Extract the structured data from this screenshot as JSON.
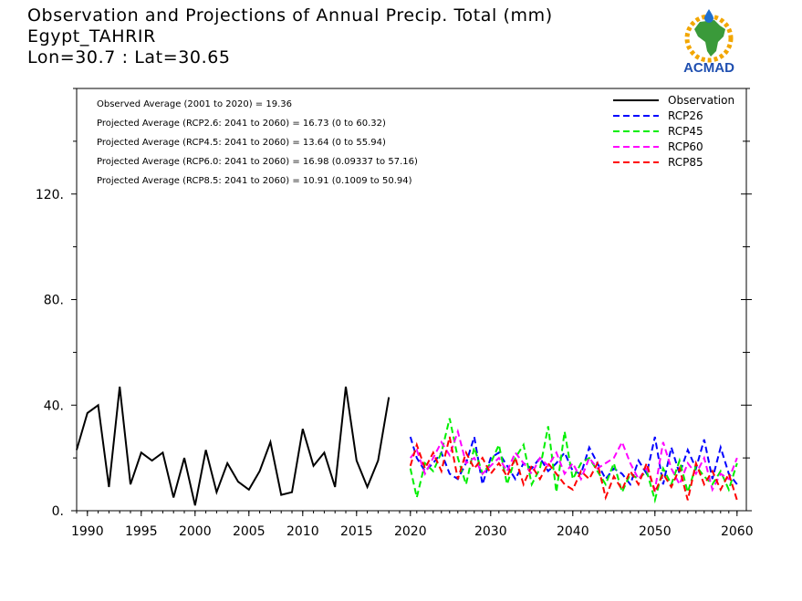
{
  "header": {
    "line1": "Observation and Projections of Annual Precip. Total (mm)",
    "line2": "Egypt_TAHRIR",
    "line3": "Lon=30.7 : Lat=30.65"
  },
  "logo": {
    "text": "ACMAD",
    "icon": "africa-map-logo-icon"
  },
  "stats": [
    "Observed Average (2001 to 2020) = 19.36",
    "Projected Average (RCP2.6: 2041 to 2060) = 16.73 (0 to 60.32)",
    "Projected Average (RCP4.5: 2041 to 2060) = 13.64 (0 to 55.94)",
    "Projected Average (RCP6.0: 2041 to 2060) = 16.98 (0.09337 to 57.16)",
    "Projected Average (RCP8.5: 2041 to 2060) = 10.91 (0.1009 to 50.94)"
  ],
  "chart_data": {
    "type": "line",
    "xlim": [
      1989,
      2060
    ],
    "ylim": [
      0,
      160
    ],
    "x_ticks": [
      1990,
      1995,
      2000,
      2005,
      2010,
      2015,
      2020,
      2030,
      2040,
      2050,
      2060
    ],
    "x_tick_labels": [
      "1990",
      "1995",
      "2000",
      "2005",
      "2010",
      "2015",
      "2020",
      "2030",
      "2040",
      "2050",
      "2060"
    ],
    "y_ticks": [
      0,
      40,
      80,
      120
    ],
    "y_tick_labels": [
      "0.",
      "40.",
      "80.",
      "120."
    ],
    "y_minor_ticks": [
      20,
      60,
      100,
      140,
      160
    ],
    "legend_position": "top-right",
    "series": [
      {
        "name": "Observation",
        "color": "#000000",
        "dash": "solid",
        "x": [
          1989,
          1990,
          1991,
          1992,
          1993,
          1994,
          1995,
          1996,
          1997,
          1998,
          1999,
          2000,
          2001,
          2002,
          2003,
          2004,
          2005,
          2006,
          2007,
          2008,
          2009,
          2010,
          2011,
          2012,
          2013,
          2014,
          2015,
          2016,
          2017,
          2018,
          2019
        ],
        "values": [
          23,
          37,
          40,
          9,
          47,
          10,
          22,
          19,
          22,
          5,
          20,
          2,
          23,
          7,
          18,
          11,
          8,
          15,
          26,
          6,
          7,
          31,
          17,
          22,
          9,
          47,
          19,
          9,
          19,
          43,
          null
        ]
      },
      {
        "name": "RCP26",
        "color": "#0000ff",
        "dash": "dashed",
        "x": [
          2020,
          2021,
          2022,
          2023,
          2024,
          2025,
          2026,
          2027,
          2028,
          2029,
          2030,
          2031,
          2032,
          2033,
          2034,
          2035,
          2036,
          2037,
          2038,
          2039,
          2040,
          2041,
          2042,
          2043,
          2044,
          2045,
          2046,
          2047,
          2048,
          2049,
          2050,
          2051,
          2052,
          2053,
          2054,
          2055,
          2056,
          2057,
          2058,
          2059,
          2060
        ],
        "values": [
          28,
          20,
          15,
          18,
          22,
          14,
          12,
          18,
          28,
          10,
          20,
          22,
          17,
          12,
          18,
          16,
          20,
          15,
          18,
          22,
          15,
          14,
          24,
          18,
          12,
          16,
          14,
          10,
          19,
          14,
          28,
          10,
          24,
          14,
          23,
          16,
          27,
          12,
          24,
          14,
          10
        ]
      },
      {
        "name": "RCP45",
        "color": "#00ee00",
        "dash": "dashed",
        "x": [
          2020,
          2021,
          2022,
          2023,
          2024,
          2025,
          2026,
          2027,
          2028,
          2029,
          2030,
          2031,
          2032,
          2033,
          2034,
          2035,
          2036,
          2037,
          2038,
          2039,
          2040,
          2041,
          2042,
          2043,
          2044,
          2045,
          2046,
          2047,
          2048,
          2049,
          2050,
          2051,
          2052,
          2053,
          2054,
          2055,
          2056,
          2057,
          2058,
          2059,
          2060
        ],
        "values": [
          16,
          5,
          18,
          15,
          22,
          35,
          20,
          10,
          24,
          14,
          18,
          25,
          10,
          20,
          25,
          10,
          16,
          32,
          7,
          30,
          12,
          18,
          20,
          15,
          10,
          18,
          7,
          14,
          12,
          15,
          4,
          16,
          10,
          19,
          7,
          17,
          13,
          10,
          15,
          8,
          18
        ]
      },
      {
        "name": "RCP60",
        "color": "#ff00ff",
        "dash": "dashed",
        "x": [
          2020,
          2021,
          2022,
          2023,
          2024,
          2025,
          2026,
          2027,
          2028,
          2029,
          2030,
          2031,
          2032,
          2033,
          2034,
          2035,
          2036,
          2037,
          2038,
          2039,
          2040,
          2041,
          2042,
          2043,
          2044,
          2045,
          2046,
          2047,
          2048,
          2049,
          2050,
          2051,
          2052,
          2053,
          2054,
          2055,
          2056,
          2057,
          2058,
          2059,
          2060
        ],
        "values": [
          20,
          23,
          14,
          20,
          26,
          21,
          30,
          18,
          20,
          14,
          17,
          20,
          15,
          22,
          18,
          14,
          20,
          17,
          22,
          14,
          18,
          12,
          20,
          16,
          18,
          20,
          26,
          18,
          12,
          16,
          8,
          26,
          16,
          10,
          18,
          14,
          20,
          8,
          14,
          12,
          20
        ]
      },
      {
        "name": "RCP85",
        "color": "#ff0000",
        "dash": "dashed",
        "x": [
          2020,
          2021,
          2022,
          2023,
          2024,
          2025,
          2026,
          2027,
          2028,
          2029,
          2030,
          2031,
          2032,
          2033,
          2034,
          2035,
          2036,
          2037,
          2038,
          2039,
          2040,
          2041,
          2042,
          2043,
          2044,
          2045,
          2046,
          2047,
          2048,
          2049,
          2050,
          2051,
          2052,
          2053,
          2054,
          2055,
          2056,
          2057,
          2058,
          2059,
          2060
        ],
        "values": [
          17,
          25,
          16,
          22,
          15,
          28,
          12,
          22,
          16,
          20,
          14,
          18,
          13,
          20,
          10,
          17,
          12,
          18,
          14,
          10,
          8,
          15,
          12,
          18,
          5,
          13,
          8,
          15,
          10,
          18,
          7,
          14,
          9,
          16,
          4,
          18,
          10,
          15,
          8,
          14,
          4
        ]
      }
    ]
  }
}
